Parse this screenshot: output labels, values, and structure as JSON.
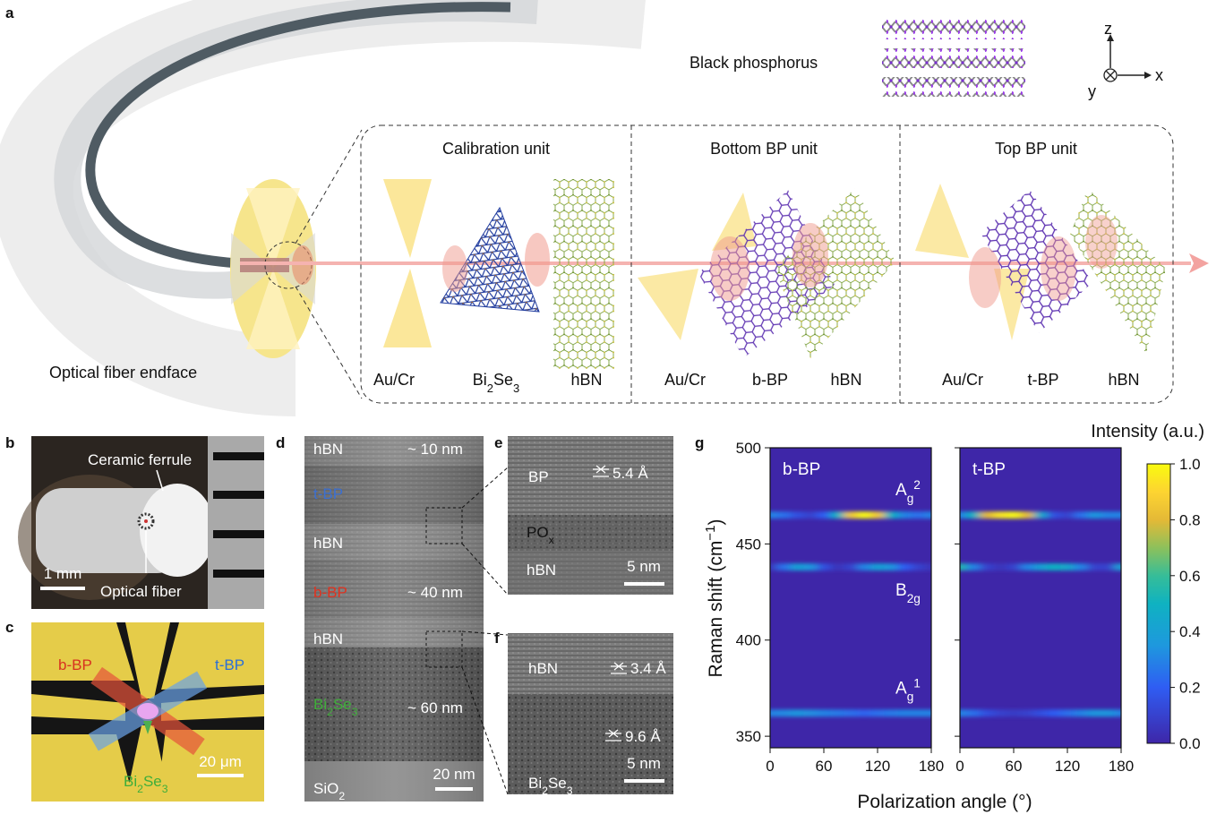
{
  "panel_labels": [
    "a",
    "b",
    "c",
    "d",
    "e",
    "f",
    "g"
  ],
  "a": {
    "structure_label": "Black phosphorus",
    "axes": {
      "z": "z",
      "x": "x",
      "y": "y"
    },
    "endface_label": "Optical fiber endface",
    "units": [
      {
        "title": "Calibration unit",
        "layers": [
          [
            "Au/Cr"
          ],
          [
            "Bi",
            "2",
            "Se",
            "3"
          ],
          [
            "hBN"
          ]
        ]
      },
      {
        "title": "Bottom BP unit",
        "layers": [
          [
            "Au/Cr"
          ],
          [
            "b-BP"
          ],
          [
            "hBN"
          ]
        ]
      },
      {
        "title": "Top BP unit",
        "layers": [
          [
            "Au/Cr"
          ],
          [
            "t-BP"
          ],
          [
            "hBN"
          ]
        ]
      }
    ]
  },
  "b": {
    "ferrule": "Ceramic ferrule",
    "fiber": "Optical fiber",
    "scale": "1 mm"
  },
  "c": {
    "b_bp": "b-BP",
    "t_bp": "t-BP",
    "bi2se3": [
      "Bi",
      "2",
      "Se",
      "3"
    ],
    "scale": "20 μm"
  },
  "d": {
    "layers": [
      [
        "hBN"
      ],
      [
        "t-BP"
      ],
      [
        "hBN"
      ],
      [
        "b-BP"
      ],
      [
        "hBN"
      ],
      [
        "Bi",
        "2",
        "Se",
        "3"
      ],
      [
        "SiO",
        "2"
      ]
    ],
    "thickness": [
      "~ 10 nm",
      "~ 40 nm",
      "~ 60 nm"
    ],
    "scale": "20 nm"
  },
  "e": {
    "bp": "BP",
    "spacing": "5.4 Å",
    "pox": [
      "PO",
      "x"
    ],
    "hbn": "hBN",
    "scale": "5 nm"
  },
  "f": {
    "hbn": "hBN",
    "spacing1": "3.4 Å",
    "bi2se3": [
      "Bi",
      "2",
      "Se",
      "3"
    ],
    "spacing2": "9.6 Å",
    "scale": "5 nm"
  },
  "chart_data": {
    "type": "heatmap",
    "title": "Intensity (a.u.)",
    "x_label": "Polarization angle (°)",
    "y_label": [
      "Raman shift (cm",
      "−1",
      ")"
    ],
    "colormap": "parula",
    "xlim": [
      0,
      180
    ],
    "xticks": [
      0,
      60,
      120,
      180
    ],
    "ylim": [
      344,
      500
    ],
    "yticks": [
      350,
      400,
      450,
      500
    ],
    "clim": [
      0,
      1
    ],
    "cticks": [
      {
        "value": 0,
        "label": "0.0"
      },
      0.2,
      0.4,
      0.6,
      0.8,
      {
        "value": 1,
        "label": "1.0"
      }
    ],
    "x": [
      0,
      15,
      30,
      45,
      60,
      75,
      90,
      105,
      120,
      135,
      150,
      165,
      180
    ],
    "panels": [
      {
        "name": "b-BP",
        "peaks": [
          {
            "shift": 465,
            "label": [
              "A",
              "g",
              "2"
            ],
            "values": [
              0.3,
              0.25,
              0.15,
              0.1,
              0.2,
              0.5,
              0.85,
              1.0,
              0.85,
              0.5,
              0.3,
              0.25,
              0.3
            ]
          },
          {
            "shift": 438,
            "label": [
              "B",
              "2g"
            ],
            "values": [
              0.05,
              0.25,
              0.4,
              0.35,
              0.15,
              0.05,
              0.1,
              0.3,
              0.4,
              0.35,
              0.2,
              0.1,
              0.05
            ]
          },
          {
            "shift": 362,
            "label": [
              "A",
              "g",
              "1"
            ],
            "values": [
              0.3,
              0.32,
              0.35,
              0.33,
              0.3,
              0.28,
              0.25,
              0.22,
              0.25,
              0.28,
              0.3,
              0.3,
              0.3
            ]
          }
        ]
      },
      {
        "name": "t-BP",
        "peaks": [
          {
            "shift": 465,
            "values": [
              0.3,
              0.5,
              0.8,
              0.95,
              1.0,
              0.8,
              0.45,
              0.15,
              0.1,
              0.25,
              0.35,
              0.3,
              0.3
            ]
          },
          {
            "shift": 438,
            "values": [
              0.55,
              0.3,
              0.1,
              0.05,
              0.1,
              0.3,
              0.4,
              0.5,
              0.45,
              0.3,
              0.1,
              0.1,
              0.4
            ]
          },
          {
            "shift": 362,
            "values": [
              0.3,
              0.25,
              0.15,
              0.1,
              0.08,
              0.1,
              0.15,
              0.2,
              0.25,
              0.3,
              0.35,
              0.35,
              0.3
            ]
          }
        ]
      }
    ]
  }
}
